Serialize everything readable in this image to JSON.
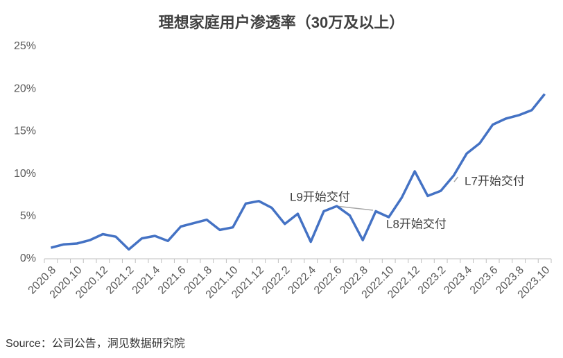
{
  "chart_data": {
    "type": "line",
    "title": "理想家庭用户渗透率（30万及以上）",
    "categories": [
      "2020.8",
      null,
      "2020.10",
      null,
      "2020.12",
      null,
      "2021.2",
      null,
      "2021.4",
      null,
      "2021.6",
      null,
      "2021.8",
      null,
      "2021.10",
      null,
      "2021.12",
      null,
      "2022.2",
      null,
      "2022.4",
      null,
      "2022.6",
      null,
      "2022.8",
      null,
      "2022.10",
      null,
      "2022.12",
      null,
      "2023.2",
      null,
      "2023.4",
      null,
      "2023.6",
      null,
      "2023.8",
      null,
      "2023.10"
    ],
    "series": [
      {
        "name": "理想家庭用户渗透率",
        "color": "#4472c4",
        "values": [
          1.3,
          1.7,
          1.8,
          2.2,
          2.9,
          2.6,
          1.1,
          2.4,
          2.7,
          2.1,
          3.8,
          4.2,
          4.6,
          3.4,
          3.7,
          6.5,
          6.8,
          6.0,
          4.1,
          5.3,
          2.0,
          5.6,
          6.2,
          5.1,
          2.2,
          5.6,
          4.9,
          7.2,
          10.3,
          7.4,
          8.0,
          9.8,
          12.4,
          13.6,
          15.8,
          16.5,
          16.9,
          17.5,
          19.4
        ]
      }
    ],
    "ylim": [
      0,
      25
    ],
    "yticks": [
      {
        "value": 0,
        "label": "0%"
      },
      {
        "value": 5,
        "label": "5%"
      },
      {
        "value": 10,
        "label": "10%"
      },
      {
        "value": 15,
        "label": "15%"
      },
      {
        "value": 20,
        "label": "20%"
      },
      {
        "value": 25,
        "label": "25%"
      }
    ],
    "annotations": [
      "L9开始交付",
      "L8开始交付",
      "L7开始交付"
    ],
    "source": "Source：公司公告，洞见数据研究院"
  }
}
